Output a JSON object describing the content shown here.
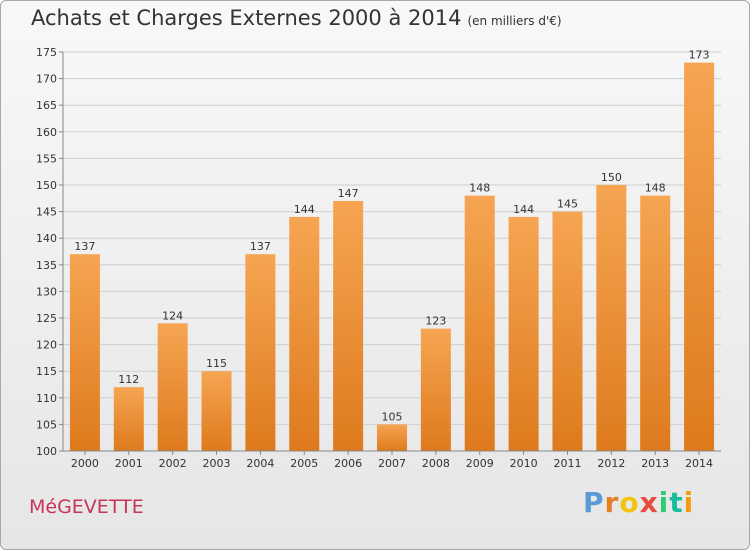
{
  "header": {
    "title": "Achats et Charges Externes 2000 à 2014",
    "subtitle": "(en milliers d'€)"
  },
  "footer": {
    "commune": "MéGEVETTE",
    "logo_letters": [
      "P",
      "r",
      "o",
      "x",
      "i",
      "t",
      "i"
    ],
    "logo_colors": [
      "#5a9bd5",
      "#e67e22",
      "#f1c40f",
      "#e74c3c",
      "#2ecc71",
      "#1abc9c",
      "#f39c12"
    ]
  },
  "chart_data": {
    "type": "bar",
    "categories": [
      "2000",
      "2001",
      "2002",
      "2003",
      "2004",
      "2005",
      "2006",
      "2007",
      "2008",
      "2009",
      "2010",
      "2011",
      "2012",
      "2013",
      "2014"
    ],
    "values": [
      137,
      112,
      124,
      115,
      137,
      144,
      147,
      105,
      123,
      148,
      144,
      145,
      150,
      148,
      173
    ],
    "ylim": [
      100,
      175
    ],
    "yticks": [
      100,
      105,
      110,
      115,
      120,
      125,
      130,
      135,
      140,
      145,
      150,
      155,
      160,
      165,
      170,
      175
    ],
    "grid": true,
    "colors": {
      "bar_light": "#f6a552",
      "bar_dark": "#de7a1d",
      "grid": "#cfcfcf"
    }
  }
}
